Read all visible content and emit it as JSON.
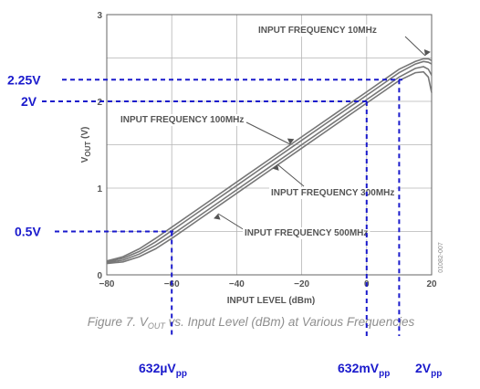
{
  "chart_data": {
    "type": "line",
    "title": "",
    "xlabel": "INPUT LEVEL (dBm)",
    "ylabel": "VOUT (V)",
    "xlim": [
      -80,
      20
    ],
    "ylim": [
      0,
      3
    ],
    "x_ticks": [
      "−80",
      "−60",
      "−40",
      "−20",
      "0",
      "20"
    ],
    "y_ticks": [
      "0",
      "1",
      "2",
      "3"
    ],
    "grid": true,
    "series": [
      {
        "name": "INPUT FREQUENCY 10MHz",
        "x": [
          -80,
          -75,
          -70,
          -65,
          -60,
          -50,
          -40,
          -30,
          -20,
          -10,
          0,
          5,
          10,
          15,
          17.5,
          19,
          20
        ],
        "y": [
          0.16,
          0.21,
          0.3,
          0.42,
          0.55,
          0.81,
          1.07,
          1.33,
          1.59,
          1.85,
          2.11,
          2.24,
          2.37,
          2.46,
          2.49,
          2.49,
          2.47
        ]
      },
      {
        "name": "INPUT FREQUENCY 100MHz",
        "x": [
          -80,
          -75,
          -70,
          -65,
          -60,
          -50,
          -40,
          -30,
          -20,
          -10,
          0,
          5,
          10,
          15,
          17.5,
          19,
          20
        ],
        "y": [
          0.15,
          0.19,
          0.27,
          0.38,
          0.51,
          0.77,
          1.03,
          1.29,
          1.55,
          1.81,
          2.07,
          2.2,
          2.33,
          2.43,
          2.46,
          2.45,
          2.43
        ]
      },
      {
        "name": "INPUT FREQUENCY 300MHz",
        "x": [
          -80,
          -75,
          -70,
          -65,
          -60,
          -50,
          -40,
          -30,
          -20,
          -10,
          0,
          5,
          10,
          15,
          17.5,
          19,
          20
        ],
        "y": [
          0.14,
          0.17,
          0.24,
          0.34,
          0.46,
          0.72,
          0.98,
          1.24,
          1.5,
          1.76,
          2.02,
          2.15,
          2.28,
          2.38,
          2.4,
          2.37,
          2.3
        ]
      },
      {
        "name": "INPUT FREQUENCY 500MHz",
        "x": [
          -80,
          -75,
          -70,
          -65,
          -60,
          -50,
          -40,
          -30,
          -20,
          -10,
          0,
          5,
          10,
          15,
          17.5,
          19,
          20
        ],
        "y": [
          0.13,
          0.15,
          0.21,
          0.3,
          0.42,
          0.68,
          0.94,
          1.2,
          1.46,
          1.72,
          1.98,
          2.11,
          2.24,
          2.33,
          2.34,
          2.28,
          2.1
        ]
      }
    ],
    "annotations": [
      {
        "type": "hline",
        "y": 2.25,
        "label": "2.25V"
      },
      {
        "type": "hline",
        "y": 2.0,
        "label": "2V"
      },
      {
        "type": "hline",
        "y": 0.5,
        "label": "0.5V"
      },
      {
        "type": "vline",
        "x": -60,
        "label": "632µV",
        "label_sub": "pp"
      },
      {
        "type": "vline",
        "x": 0,
        "label": "632mV",
        "label_sub": "pp"
      },
      {
        "type": "vline",
        "x": 10,
        "label": "2V",
        "label_sub": "pp"
      }
    ],
    "annotation_color": "#1a1acc",
    "line_color": "#777777"
  },
  "caption": {
    "prefix": "Figure 7. V",
    "sub": "OUT",
    "suffix": " vs. Input Level (dBm) at Various Frequencies"
  },
  "figure_code": "01082-007"
}
